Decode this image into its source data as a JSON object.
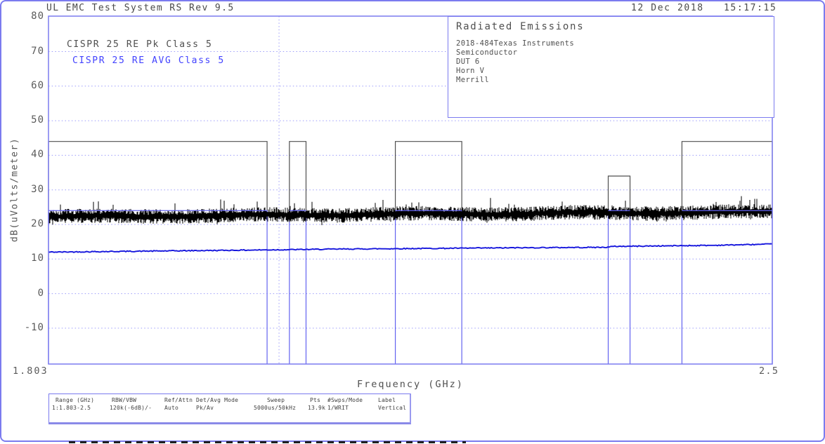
{
  "header": {
    "title": "UL EMC Test System RS Rev 9.5",
    "date": "12 Dec 2018",
    "time": "15:17:15",
    "datetime": "12 Dec 2018   15:17:15"
  },
  "legend": {
    "pk": "CISPR 25 RE Pk Class 5",
    "avg": "CISPR 25 RE AVG Class 5"
  },
  "info_box": {
    "title": "Radiated Emissions",
    "lines": [
      "2018-484Texas Instruments",
      "Semiconductor",
      "DUT 6",
      "Horn V",
      "Merrill"
    ]
  },
  "axes": {
    "y_title": "dB(uVolts/meter)",
    "x_title": "Frequency (GHz)",
    "y_ticks": [
      "80",
      "70",
      "60",
      "50",
      "40",
      "30",
      "20",
      "10",
      "0",
      "-10"
    ],
    "x_start_label": "1.803",
    "x_end_label": "2.5"
  },
  "param_table": {
    "columns": [
      {
        "header": "Range (GHz)",
        "value": "1:1.803-2.5"
      },
      {
        "header": "RBW/VBW",
        "value": "120k(-6dB)/-"
      },
      {
        "header": "Ref/Attn",
        "value": "Auto"
      },
      {
        "header": "Det/Avg Mode",
        "value": "Pk/Av"
      },
      {
        "header": "Sweep",
        "value": "5000us/50kHz"
      },
      {
        "header": "Pts",
        "value": "13.9k"
      },
      {
        "header": "#Swps/Mode",
        "value": "1/WRIT"
      },
      {
        "header": "Label",
        "value": "Vertical"
      }
    ]
  },
  "colors": {
    "accent_blue": "#7b7bef",
    "grid_blue": "#9c9cfa",
    "band_blue": "#6262f0",
    "trace_blue": "#1616dd",
    "legend_blue": "#4343ff",
    "limit_gray": "#4f4f4f",
    "trace_black": "#000000",
    "text_gray": "#4a4a4a"
  },
  "chart_data": {
    "type": "line",
    "title": "Radiated Emissions",
    "xlabel": "Frequency (GHz)",
    "ylabel": "dB(uVolts/meter)",
    "xlim": [
      1.803,
      2.5
    ],
    "ylim": [
      -20.4,
      80.4
    ],
    "y_gridlines": [
      70,
      60,
      50,
      40,
      30,
      20,
      10,
      0,
      -10
    ],
    "y_tick_values": [
      80,
      70,
      60,
      50,
      40,
      30,
      20,
      10,
      0,
      -10
    ],
    "x_dotted_gridlines": [
      2.025
    ],
    "grid": "dotted",
    "legend_position": "top-left",
    "limit_bands": [
      {
        "f_start": 1.803,
        "f_stop": 2.0135,
        "peak_limit_db": 44,
        "avg_limit_db": 24
      },
      {
        "f_start": 2.035,
        "f_stop": 2.051,
        "peak_limit_db": 44,
        "avg_limit_db": 24
      },
      {
        "f_start": 2.137,
        "f_stop": 2.201,
        "peak_limit_db": 44,
        "avg_limit_db": 24
      },
      {
        "f_start": 2.342,
        "f_stop": 2.363,
        "peak_limit_db": 34,
        "avg_limit_db": 24
      },
      {
        "f_start": 2.413,
        "f_stop": 2.5,
        "peak_limit_db": 44,
        "avg_limit_db": 24
      }
    ],
    "series": [
      {
        "name": "CISPR 25 RE Pk Class 5 (Peak trace)",
        "style": "noise-band",
        "color": "#000000",
        "breakpoints": [
          [
            1.803,
            22.2
          ],
          [
            2.1,
            22.9
          ],
          [
            2.5,
            23.6
          ]
        ],
        "noise_halfwidth_db": 1.6,
        "spike_max_db": 26.5
      },
      {
        "name": "CISPR 25 RE AVG Class 5 (Average trace)",
        "style": "line",
        "color": "#1616dd",
        "breakpoints": [
          [
            1.803,
            12.0
          ],
          [
            2.0,
            12.6
          ],
          [
            2.09,
            12.9
          ],
          [
            2.28,
            13.3
          ],
          [
            2.341,
            13.4
          ],
          [
            2.347,
            13.65
          ],
          [
            2.44,
            13.95
          ],
          [
            2.5,
            14.3
          ]
        ],
        "noise_halfwidth_db": 0.14
      }
    ]
  }
}
